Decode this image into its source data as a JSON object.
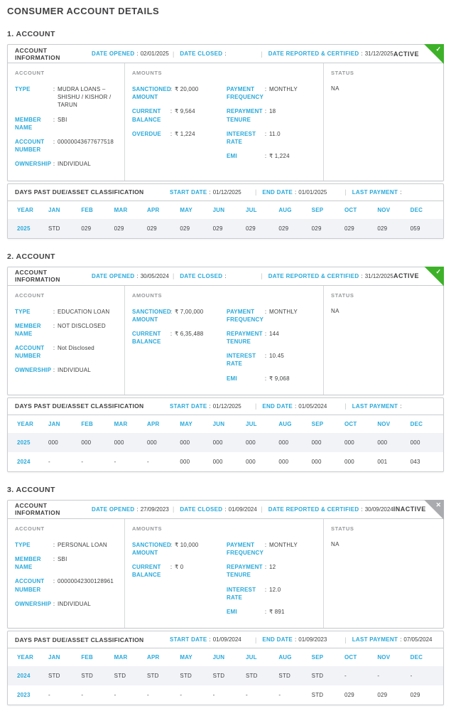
{
  "page": {
    "title": "CONSUMER ACCOUNT DETAILS"
  },
  "labels": {
    "account_information": "ACCOUNT INFORMATION",
    "date_opened": "DATE OPENED",
    "date_closed": "DATE CLOSED",
    "date_reported": "DATE REPORTED & CERTIFIED",
    "days_past_due": "DAYS PAST DUE/ASSET CLASSIFICATION",
    "start_date": "START DATE",
    "end_date": "END DATE",
    "last_payment": "LAST PAYMENT",
    "account": "ACCOUNT",
    "amounts": "AMOUNTS",
    "status": "STATUS",
    "year": "YEAR",
    "sep": "|"
  },
  "icons": {
    "check": "✓",
    "close": "✕"
  },
  "colors": {
    "accent": "#29a9da",
    "active_green": "#3db229",
    "inactive_gray": "#a9abae",
    "stripe": "#f2f3f7"
  },
  "dpd_months": [
    "JAN",
    "FEB",
    "MAR",
    "APR",
    "MAY",
    "JUN",
    "JUL",
    "AUG",
    "SEP",
    "OCT",
    "NOV",
    "DEC"
  ],
  "accounts": [
    {
      "section_title": "1. ACCOUNT",
      "status_label": "ACTIVE",
      "date_opened": "02/01/2025",
      "date_closed": "",
      "date_reported": "31/12/2025",
      "account_fields": [
        {
          "label": "TYPE",
          "value": "MUDRA LOANS – SHISHU / KISHOR / TARUN"
        },
        {
          "label": "MEMBER NAME",
          "value": "SBI"
        },
        {
          "label": "ACCOUNT NUMBER",
          "value": "00000043677677518"
        },
        {
          "label": "OWNERSHIP",
          "value": "INDIVIDUAL"
        }
      ],
      "amount_fields": [
        {
          "label": "SANCTIONED AMOUNT",
          "value": "₹ 20,000"
        },
        {
          "label": "CURRENT BALANCE",
          "value": "₹ 9,564"
        },
        {
          "label": "OVERDUE",
          "value": "₹ 1,224"
        }
      ],
      "terms_fields": [
        {
          "label": "PAYMENT FREQUENCY",
          "value": "MONTHLY"
        },
        {
          "label": "REPAYMENT TENURE",
          "value": "18"
        },
        {
          "label": "INTEREST RATE",
          "value": "11.0"
        },
        {
          "label": "EMI",
          "value": "₹ 1,224"
        }
      ],
      "status_value": "NA",
      "dpd": {
        "start_date": "01/12/2025",
        "end_date": "01/01/2025",
        "last_payment": "",
        "rows": [
          {
            "year": "2025",
            "values": [
              "STD",
              "029",
              "029",
              "029",
              "029",
              "029",
              "029",
              "029",
              "029",
              "029",
              "029",
              "059"
            ]
          }
        ]
      }
    },
    {
      "section_title": "2. ACCOUNT",
      "status_label": "ACTIVE",
      "date_opened": "30/05/2024",
      "date_closed": "",
      "date_reported": "31/12/2025",
      "account_fields": [
        {
          "label": "TYPE",
          "value": "EDUCATION LOAN"
        },
        {
          "label": "MEMBER NAME",
          "value": "NOT DISCLOSED"
        },
        {
          "label": "ACCOUNT NUMBER",
          "value": "Not Disclosed"
        },
        {
          "label": "OWNERSHIP",
          "value": "INDIVIDUAL"
        }
      ],
      "amount_fields": [
        {
          "label": "SANCTIONED AMOUNT",
          "value": "₹ 7,00,000"
        },
        {
          "label": "CURRENT BALANCE",
          "value": "₹ 6,35,488"
        }
      ],
      "terms_fields": [
        {
          "label": "PAYMENT FREQUENCY",
          "value": "MONTHLY"
        },
        {
          "label": "REPAYMENT TENURE",
          "value": "144"
        },
        {
          "label": "INTEREST RATE",
          "value": "10.45"
        },
        {
          "label": "EMI",
          "value": "₹ 9,068"
        }
      ],
      "status_value": "NA",
      "dpd": {
        "start_date": "01/12/2025",
        "end_date": "01/05/2024",
        "last_payment": "",
        "rows": [
          {
            "year": "2025",
            "values": [
              "000",
              "000",
              "000",
              "000",
              "000",
              "000",
              "000",
              "000",
              "000",
              "000",
              "000",
              "000"
            ]
          },
          {
            "year": "2024",
            "values": [
              "-",
              "-",
              "-",
              "-",
              "000",
              "000",
              "000",
              "000",
              "000",
              "000",
              "001",
              "043"
            ]
          }
        ]
      }
    },
    {
      "section_title": "3. ACCOUNT",
      "status_label": "INACTIVE",
      "date_opened": "27/09/2023",
      "date_closed": "01/09/2024",
      "date_reported": "30/09/2024",
      "account_fields": [
        {
          "label": "TYPE",
          "value": "PERSONAL LOAN"
        },
        {
          "label": "MEMBER NAME",
          "value": "SBI"
        },
        {
          "label": "ACCOUNT NUMBER",
          "value": "00000042300128961"
        },
        {
          "label": "OWNERSHIP",
          "value": "INDIVIDUAL"
        }
      ],
      "amount_fields": [
        {
          "label": "SANCTIONED AMOUNT",
          "value": "₹ 10,000"
        },
        {
          "label": "CURRENT BALANCE",
          "value": "₹ 0"
        }
      ],
      "terms_fields": [
        {
          "label": "PAYMENT FREQUENCY",
          "value": "MONTHLY"
        },
        {
          "label": "REPAYMENT TENURE",
          "value": "12"
        },
        {
          "label": "INTEREST RATE",
          "value": "12.0"
        },
        {
          "label": "EMI",
          "value": "₹ 891"
        }
      ],
      "status_value": "NA",
      "dpd": {
        "start_date": "01/09/2024",
        "end_date": "01/09/2023",
        "last_payment": "07/05/2024",
        "rows": [
          {
            "year": "2024",
            "values": [
              "STD",
              "STD",
              "STD",
              "STD",
              "STD",
              "STD",
              "STD",
              "STD",
              "STD",
              "-",
              "-",
              "-"
            ]
          },
          {
            "year": "2023",
            "values": [
              "-",
              "-",
              "-",
              "-",
              "-",
              "-",
              "-",
              "-",
              "STD",
              "029",
              "029",
              "029"
            ]
          }
        ]
      }
    }
  ]
}
